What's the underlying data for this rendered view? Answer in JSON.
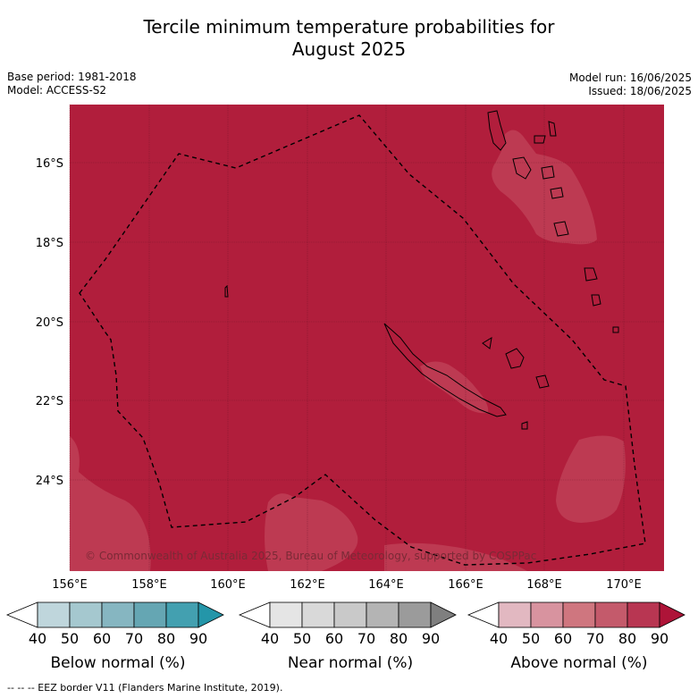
{
  "title_line1": "Tercile minimum temperature probabilities for",
  "title_line2": "August 2025",
  "base_period": "Base period: 1981-2018",
  "model": "Model: ACCESS-S2",
  "model_run": "Model run: 16/06/2025",
  "issued": "Issued: 18/06/2025",
  "copyright": "© Commonwealth of Australia 2025, Bureau of Meteorology, supported by COSPPac",
  "map": {
    "lon_ticks": [
      "156°E",
      "158°E",
      "160°E",
      "162°E",
      "164°E",
      "166°E",
      "168°E",
      "170°E"
    ],
    "lat_ticks": [
      "16°S",
      "18°S",
      "20°S",
      "22°S",
      "24°S"
    ],
    "colors": {
      "ocean_main": "#b11e3c",
      "patch_lighter": "#bd3a52",
      "land_outline": "#000000",
      "eez_line": "#000000"
    }
  },
  "colorbars": [
    {
      "label": "Below normal (%)",
      "ticks": [
        "40",
        "50",
        "60",
        "70",
        "80",
        "90"
      ],
      "colors": [
        "#ffffff",
        "#bfd6dc",
        "#a5c8cf",
        "#86b6c1",
        "#65a6b3",
        "#43a0b0",
        "#2496a9"
      ]
    },
    {
      "label": "Near normal (%)",
      "ticks": [
        "40",
        "50",
        "60",
        "70",
        "80",
        "90"
      ],
      "colors": [
        "#ffffff",
        "#e5e5e5",
        "#d9d9d9",
        "#c9c9c9",
        "#b4b4b4",
        "#9b9b9b",
        "#7f7f7f"
      ]
    },
    {
      "label": "Above normal (%)",
      "ticks": [
        "40",
        "50",
        "60",
        "70",
        "80",
        "90"
      ],
      "colors": [
        "#ffffff",
        "#e2b8c1",
        "#d8939f",
        "#cf767f",
        "#c45a6b",
        "#b83652",
        "#ae1438"
      ]
    }
  ],
  "footnote": "--  --  -- EEZ border V11 (Flanders Marine Institute, 2019)."
}
